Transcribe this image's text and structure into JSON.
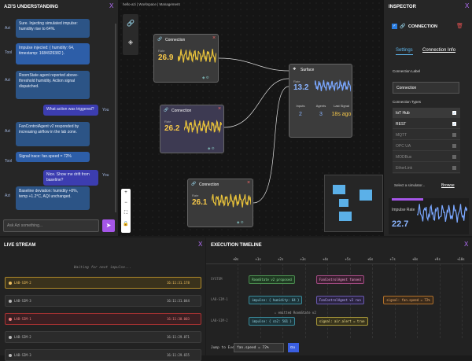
{
  "chat": {
    "title": "AZI'S UNDERSTANDING",
    "close": "X",
    "messages": [
      {
        "role": "Azi",
        "text": "Sure. Injecting simulated impulse: humidity rise to 64%."
      },
      {
        "role": "Tool",
        "text": "Impulse injected: { humidity: 64, timestamp: 1684929382 }."
      },
      {
        "role": "Azi",
        "text": "RoomState agent reported above-threshold humidity. Action signal dispatched."
      },
      {
        "role": "You",
        "text": "What action was triggered?"
      },
      {
        "role": "Azi",
        "text": "FanControlAgent v2 responded by increasing airflow in the lab zone."
      },
      {
        "role": "Tool",
        "text": "Signal trace: fan.speed = 72%"
      },
      {
        "role": "You",
        "text": "Nice. Show me drift from baseline?"
      },
      {
        "role": "Azi",
        "text": "Baseline deviation: humidity +8%, temp +1.2°C, AQI unchanged."
      }
    ],
    "placeholder": "Ask Azi something..."
  },
  "canvas": {
    "breadcrumb": "hello-azi | Workspace | Management",
    "nodes": [
      {
        "title": "Connection",
        "label": "Rate",
        "value": "26.9"
      },
      {
        "title": "Connection",
        "label": "Rate",
        "value": "26.2"
      },
      {
        "title": "Connection",
        "label": "Rate",
        "value": "26.1"
      }
    ],
    "surface": {
      "title": "Surface",
      "label": "Rate",
      "value": "13.2",
      "stats": [
        {
          "label": "Inputs",
          "value": "2"
        },
        {
          "label": "Agents",
          "value": "3"
        },
        {
          "label": "Last Signal",
          "value": "18s ago"
        }
      ]
    },
    "zoom": [
      "+",
      "−",
      "⛶",
      "🔒"
    ]
  },
  "inspector": {
    "title": "INSPECTOR",
    "close": "X",
    "node": "CONNECTION",
    "tabs": [
      "Settings",
      "Connection Info"
    ],
    "label_heading": "Connection Label",
    "label_value": "Connection",
    "types_heading": "Connection Types",
    "types": [
      {
        "name": "IoT Hub",
        "checked": true
      },
      {
        "name": "REST",
        "checked": true
      },
      {
        "name": "MQTT",
        "checked": false
      },
      {
        "name": "OPC UA",
        "checked": false
      },
      {
        "name": "MODBus",
        "checked": false
      },
      {
        "name": "EtherLink",
        "checked": false
      }
    ],
    "simulator": "Select a simulator...",
    "browse": "Browse",
    "rate_label": "Impulse Rate",
    "rate_value": "22.7"
  },
  "stream": {
    "title": "LIVE STREAM",
    "close": "X",
    "waiting": "Waiting for next impulse...",
    "rows": [
      {
        "source": "LAB-SIM-2",
        "time": "16:11:31.178",
        "tone": "amber"
      },
      {
        "source": "LAB-SIM-3",
        "time": "16:11:31.044",
        "tone": "plain"
      },
      {
        "source": "LAB-SIM-1",
        "time": "16:11:30.003",
        "tone": "red"
      },
      {
        "source": "LAB-SIM-2",
        "time": "16:11:29.871",
        "tone": "plain"
      },
      {
        "source": "LAB-SIM-3",
        "time": "16:11:29.655",
        "tone": "plain"
      }
    ]
  },
  "timeline": {
    "title": "EXECUTION TIMELINE",
    "close": "X",
    "ticks": [
      "+0s",
      "+1s",
      "+2s",
      "+3s",
      "+4s",
      "+5s",
      "+6s",
      "+7s",
      "+8s",
      "+9s",
      "+10s"
    ],
    "lanes": [
      "SYSTEM",
      "LAB-SIM-1",
      "LAB-SIM-2"
    ],
    "events": [
      {
        "lane": 0,
        "at": 0.5,
        "text": "RoomState v2 proposed",
        "tone": "green"
      },
      {
        "lane": 0,
        "at": 3.5,
        "text": "FanControlAgent fanned",
        "tone": "pink"
      },
      {
        "lane": 1,
        "at": 0.5,
        "text": "impulse: { humidity: 64 }",
        "tone": "teal"
      },
      {
        "lane": 1,
        "at": 3.5,
        "text": "FanControlAgent v2 run",
        "tone": "purple"
      },
      {
        "lane": 1,
        "at": 6.5,
        "text": "signal: fan.speed = 72%",
        "tone": "orange"
      },
      {
        "lane": 2,
        "at": 1.5,
        "text": "↓ emitted RoomState v2",
        "tone": "none"
      },
      {
        "lane": 2,
        "at": 0.5,
        "text": "impulse: { co2: 501 }",
        "tone": "teal"
      },
      {
        "lane": 2,
        "at": 3.5,
        "text": "signal: air.alert = true",
        "tone": "yellow"
      }
    ],
    "jump_label": "Jump to Event:",
    "jump_value": "fan.speed = 72%",
    "go": "Go"
  }
}
